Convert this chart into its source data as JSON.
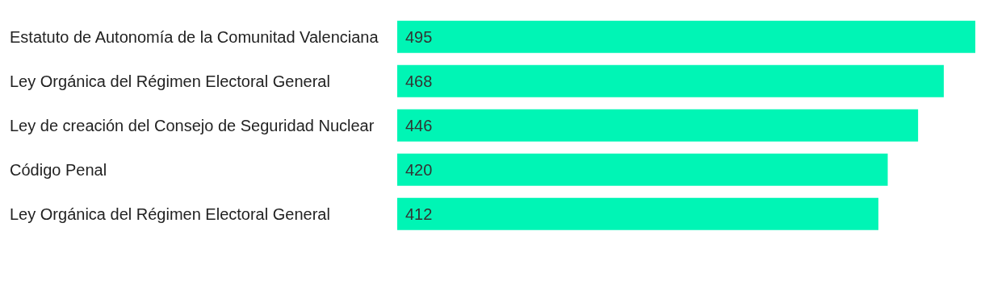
{
  "chart_data": {
    "type": "bar",
    "orientation": "horizontal",
    "categories": [
      "Estatuto de Autonomía de la Comunitad Valenciana",
      "Ley Orgánica del Régimen Electoral General",
      "Ley de creación del Consejo de Seguridad Nuclear",
      "Código Penal",
      "Ley Orgánica del Régimen Electoral General"
    ],
    "values": [
      495,
      468,
      446,
      420,
      412
    ],
    "color": "#00f5b5",
    "data_labels": true
  }
}
